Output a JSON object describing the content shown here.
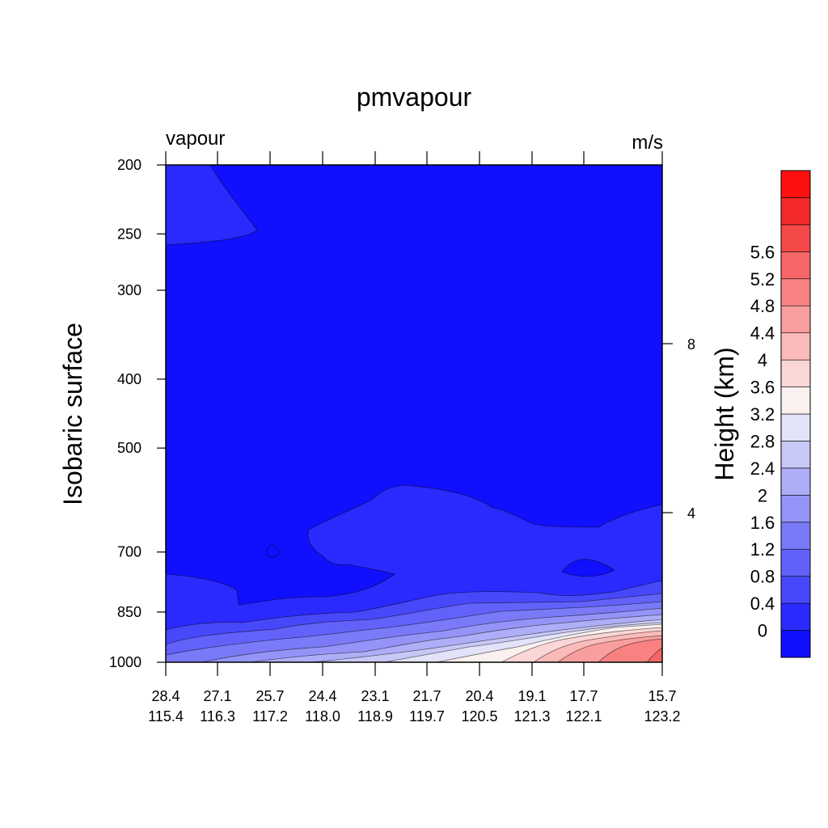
{
  "chart_data": {
    "type": "heatmap",
    "title": "pmvapour",
    "left_string": "vapour",
    "right_string": "m/s",
    "ylabel": "Isobaric surface",
    "right_axis_label": "Height (km)",
    "y_axis": {
      "scale": "log",
      "reversed": true,
      "range": [
        200,
        1000
      ],
      "ticks": [
        200,
        250,
        300,
        400,
        500,
        700,
        850,
        1000
      ],
      "tick_labels": [
        "200",
        "250",
        "300",
        "400",
        "500",
        "700",
        "850",
        "1000"
      ]
    },
    "right_axis": {
      "ticks": [
        8,
        4
      ],
      "tick_labels": [
        "8",
        "4"
      ]
    },
    "x_axis": {
      "ticks": [
        {
          "lat": "28.4",
          "lon": "115.4"
        },
        {
          "lat": "27.1",
          "lon": "116.3"
        },
        {
          "lat": "25.7",
          "lon": "117.2"
        },
        {
          "lat": "24.4",
          "lon": "118.0"
        },
        {
          "lat": "23.1",
          "lon": "118.9"
        },
        {
          "lat": "21.7",
          "lon": "119.7"
        },
        {
          "lat": "20.4",
          "lon": "120.5"
        },
        {
          "lat": "19.1",
          "lon": "121.3"
        },
        {
          "lat": "17.7",
          "lon": "122.1"
        },
        {
          "lat": "15.7",
          "lon": "123.2"
        }
      ]
    },
    "colorbar": {
      "levels": [
        "0",
        "0.4",
        "0.8",
        "1.2",
        "1.6",
        "2",
        "2.4",
        "2.8",
        "3.2",
        "3.6",
        "4",
        "4.4",
        "4.8",
        "5.2",
        "5.6"
      ],
      "colors": [
        "#1010ff",
        "#2a2aff",
        "#4848fb",
        "#6262fa",
        "#7a7af8",
        "#9494f8",
        "#aeaef8",
        "#c8c8f6",
        "#e2e2f8",
        "#fbf0f0",
        "#fbd6d6",
        "#fbbaba",
        "#f99e9e",
        "#f88282",
        "#f76666",
        "#f54848",
        "#f42a2a",
        "#ff1010"
      ]
    },
    "contour_fill_colors": {
      "c0": "#1010ff",
      "c1": "#2a2aff",
      "c2": "#4848fb",
      "c3": "#6262fa",
      "c4": "#7a7af8",
      "c5": "#9494f8",
      "c6": "#aeaef8",
      "c7": "#c8c8f6",
      "c8": "#e2e2f8",
      "c9": "#fbf0f0",
      "c10": "#fbd6d6",
      "c11": "#fbbaba",
      "c12": "#f99e9e",
      "c13": "#f88282",
      "c14": "#f76666"
    }
  }
}
